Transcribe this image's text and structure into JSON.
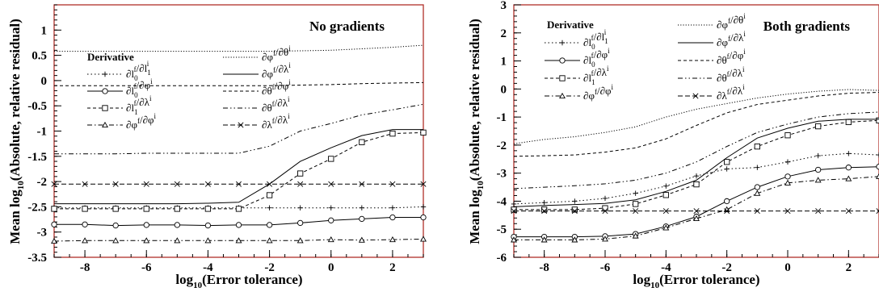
{
  "charts": [
    {
      "title": "No gradients",
      "xlabel": "log10(Error tolerance)",
      "ylabel": "Mean log10(Absolute, relative residual)",
      "legend_title": "Derivative",
      "xlim": [
        -9,
        3
      ],
      "ylim": [
        -3.5,
        1.5
      ],
      "xticks": [
        -8,
        -6,
        -4,
        -2,
        0,
        2
      ],
      "yticks": [
        -3.5,
        -3,
        -2.5,
        -2,
        -1.5,
        -1,
        -0.5,
        0,
        0.5,
        1
      ],
      "ytick_labels": [
        "-3.5",
        "-3",
        "-2.5",
        "-2",
        "-1.5",
        "-1",
        "-0.5",
        "0",
        "0.5",
        "1"
      ],
      "legend_pos": [
        {
          "col": 0,
          "row": 1,
          "series": 0
        },
        {
          "col": 0,
          "row": 2,
          "series": 1
        },
        {
          "col": 0,
          "row": 3,
          "series": 2
        },
        {
          "col": 0,
          "row": 4,
          "series": 3
        },
        {
          "col": 1,
          "row": 0,
          "series": 4
        },
        {
          "col": 1,
          "row": 1,
          "series": 5
        },
        {
          "col": 1,
          "row": 2,
          "series": 6
        },
        {
          "col": 1,
          "row": 3,
          "series": 7
        },
        {
          "col": 1,
          "row": 4,
          "series": 8
        }
      ]
    },
    {
      "title": "Both gradients",
      "xlabel": "log10(Error tolerance)",
      "ylabel": "Mean log10(Absolute, relative residual)",
      "legend_title": "Derivative",
      "xlim": [
        -9,
        3
      ],
      "ylim": [
        -6,
        3
      ],
      "xticks": [
        -8,
        -6,
        -4,
        -2,
        0,
        2
      ],
      "yticks": [
        -6,
        -5,
        -4,
        -3,
        -2,
        -1,
        0,
        1,
        2,
        3
      ],
      "ytick_labels": [
        "-6",
        "-5",
        "-4",
        "-3",
        "-2",
        "-1",
        "0",
        "1",
        "2",
        "3"
      ],
      "legend_pos": [
        {
          "col": 0,
          "row": 1,
          "series": 0
        },
        {
          "col": 0,
          "row": 2,
          "series": 1
        },
        {
          "col": 0,
          "row": 3,
          "series": 2
        },
        {
          "col": 0,
          "row": 4,
          "series": 3
        },
        {
          "col": 1,
          "row": 0,
          "series": 4
        },
        {
          "col": 1,
          "row": 1,
          "series": 5
        },
        {
          "col": 1,
          "row": 2,
          "series": 6
        },
        {
          "col": 1,
          "row": 3,
          "series": 7
        },
        {
          "col": 1,
          "row": 4,
          "series": 8
        }
      ]
    }
  ],
  "series_style": [
    {
      "name": "∂l₀ᶠ/∂l₁ⁱ",
      "dash": "1.5,3",
      "marker": "plus"
    },
    {
      "name": "∂l₀ᶠ/∂φⁱ",
      "dash": "",
      "marker": "circle"
    },
    {
      "name": "∂l₁ᶠ/∂λⁱ",
      "dash": "4,3",
      "marker": "square"
    },
    {
      "name": "∂φᶠ/∂φⁱ",
      "dash": "6,3,1.5,3",
      "marker": "triangle"
    },
    {
      "name": "∂φᶠ/∂θⁱ",
      "dash": "1.2,2",
      "marker": "none"
    },
    {
      "name": "∂φᶠ/∂λⁱ",
      "dash": "",
      "marker": "none"
    },
    {
      "name": "∂θᶠ/∂φⁱ",
      "dash": "4,3",
      "marker": "none"
    },
    {
      "name": "∂θᶠ/∂λⁱ",
      "dash": "6,3,1.5,3,1.5,3",
      "marker": "none"
    },
    {
      "name": "∂λᶠ/∂λⁱ",
      "dash": "6,3",
      "marker": "cross"
    }
  ],
  "chart_data": [
    {
      "type": "line",
      "title": "No gradients",
      "xlabel": "log10(Error tolerance)",
      "ylabel": "Mean log10(Absolute, relative residual)",
      "xlim": [
        -9,
        3
      ],
      "ylim": [
        -3.5,
        1.5
      ],
      "x": [
        -9,
        -8,
        -7,
        -6,
        -5,
        -4,
        -3,
        -2,
        -1,
        0,
        1,
        2,
        3
      ],
      "series": [
        {
          "name": "∂l₀ᶠ/∂l₁ⁱ",
          "values": [
            -2.52,
            -2.52,
            -2.52,
            -2.52,
            -2.52,
            -2.52,
            -2.52,
            -2.52,
            -2.52,
            -2.52,
            -2.52,
            -2.52,
            -2.5
          ]
        },
        {
          "name": "∂l₀ᶠ/∂φⁱ",
          "values": [
            -2.85,
            -2.85,
            -2.87,
            -2.86,
            -2.86,
            -2.87,
            -2.86,
            -2.86,
            -2.82,
            -2.77,
            -2.74,
            -2.71,
            -2.71
          ]
        },
        {
          "name": "∂l₁ᶠ/∂λⁱ",
          "values": [
            -2.54,
            -2.54,
            -2.54,
            -2.54,
            -2.54,
            -2.54,
            -2.54,
            -2.27,
            -1.84,
            -1.55,
            -1.22,
            -1.05,
            -1.03
          ]
        },
        {
          "name": "∂φᶠ/∂φⁱ",
          "values": [
            -3.18,
            -3.17,
            -3.17,
            -3.17,
            -3.17,
            -3.17,
            -3.17,
            -3.17,
            -3.17,
            -3.15,
            -3.16,
            -3.15,
            -3.14
          ]
        },
        {
          "name": "∂φᶠ/∂θⁱ",
          "values": [
            0.58,
            0.58,
            0.58,
            0.58,
            0.58,
            0.58,
            0.58,
            0.58,
            0.59,
            0.6,
            0.63,
            0.66,
            0.7
          ]
        },
        {
          "name": "∂φᶠ/∂λⁱ",
          "values": [
            -2.44,
            -2.44,
            -2.44,
            -2.44,
            -2.44,
            -2.43,
            -2.41,
            -2.05,
            -1.6,
            -1.33,
            -1.09,
            -0.97,
            -0.97
          ]
        },
        {
          "name": "∂θᶠ/∂φⁱ",
          "values": [
            -0.1,
            -0.1,
            -0.1,
            -0.1,
            -0.1,
            -0.1,
            -0.1,
            -0.1,
            -0.09,
            -0.08,
            -0.06,
            -0.05,
            -0.04
          ]
        },
        {
          "name": "∂θᶠ/∂λⁱ",
          "values": [
            -1.45,
            -1.45,
            -1.45,
            -1.44,
            -1.44,
            -1.44,
            -1.44,
            -1.3,
            -1.0,
            -0.85,
            -0.68,
            -0.58,
            -0.47
          ]
        },
        {
          "name": "∂λᶠ/∂λⁱ",
          "values": [
            -2.05,
            -2.05,
            -2.05,
            -2.05,
            -2.05,
            -2.05,
            -2.05,
            -2.05,
            -2.05,
            -2.05,
            -2.05,
            -2.05,
            -2.05
          ]
        }
      ]
    },
    {
      "type": "line",
      "title": "Both gradients",
      "xlabel": "log10(Error tolerance)",
      "ylabel": "Mean log10(Absolute, relative residual)",
      "xlim": [
        -9,
        3
      ],
      "ylim": [
        -6,
        3
      ],
      "x": [
        -9,
        -8,
        -7,
        -6,
        -5,
        -4,
        -3,
        -2,
        -1,
        0,
        1,
        2,
        3
      ],
      "series": [
        {
          "name": "∂l₀ᶠ/∂l₁ⁱ",
          "values": [
            -4.1,
            -4.05,
            -4.0,
            -3.9,
            -3.72,
            -3.46,
            -3.1,
            -2.85,
            -2.8,
            -2.6,
            -2.38,
            -2.3,
            -2.35
          ]
        },
        {
          "name": "∂l₀ᶠ/∂φⁱ",
          "values": [
            -5.27,
            -5.27,
            -5.27,
            -5.25,
            -5.17,
            -4.9,
            -4.55,
            -4.0,
            -3.5,
            -3.12,
            -2.88,
            -2.8,
            -2.77
          ]
        },
        {
          "name": "∂l₁ᶠ/∂λⁱ",
          "values": [
            -4.3,
            -4.3,
            -4.3,
            -4.25,
            -4.1,
            -3.78,
            -3.4,
            -2.6,
            -2.05,
            -1.65,
            -1.33,
            -1.18,
            -1.12
          ]
        },
        {
          "name": "∂φᶠ/∂φⁱ",
          "values": [
            -5.38,
            -5.38,
            -5.38,
            -5.35,
            -5.24,
            -4.95,
            -4.62,
            -4.3,
            -3.72,
            -3.35,
            -3.25,
            -3.2,
            -3.12
          ]
        },
        {
          "name": "∂φᶠ/∂θⁱ",
          "values": [
            -1.95,
            -1.8,
            -1.7,
            -1.55,
            -1.35,
            -1.0,
            -0.72,
            -0.52,
            -0.32,
            -0.18,
            -0.08,
            -0.02,
            -0.05
          ]
        },
        {
          "name": "∂φᶠ/∂λⁱ",
          "values": [
            -4.2,
            -4.15,
            -4.12,
            -4.08,
            -3.95,
            -3.65,
            -3.25,
            -2.45,
            -1.75,
            -1.4,
            -1.15,
            -1.08,
            -1.08
          ]
        },
        {
          "name": "∂θᶠ/∂φⁱ",
          "values": [
            -2.4,
            -2.38,
            -2.35,
            -2.25,
            -2.1,
            -1.78,
            -1.3,
            -0.85,
            -0.55,
            -0.4,
            -0.25,
            -0.15,
            -0.12
          ]
        },
        {
          "name": "∂θᶠ/∂λⁱ",
          "values": [
            -3.55,
            -3.5,
            -3.45,
            -3.38,
            -3.25,
            -3.0,
            -2.6,
            -2.05,
            -1.55,
            -1.25,
            -1.0,
            -0.88,
            -0.82
          ]
        },
        {
          "name": "∂λᶠ/∂λⁱ",
          "values": [
            -4.35,
            -4.35,
            -4.35,
            -4.35,
            -4.35,
            -4.35,
            -4.35,
            -4.35,
            -4.35,
            -4.35,
            -4.35,
            -4.35,
            -4.35
          ]
        }
      ]
    }
  ]
}
